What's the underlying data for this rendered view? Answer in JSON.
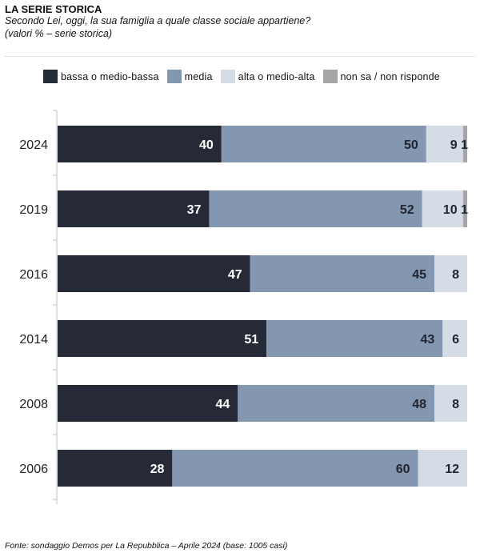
{
  "header": {
    "title": "LA SERIE STORICA",
    "subtitle": "Secondo Lei, oggi, la sua famiglia a quale classe sociale appartiene?",
    "note": "(valori % – serie storica)"
  },
  "footer": {
    "source": "Fonte: sondaggio Demos per La Repubblica – Aprile 2024 (base: 1005 casi)"
  },
  "colors": {
    "bassa": "#262a37",
    "media": "#8497b0",
    "alta": "#d6dce5",
    "nonsa": "#a6a6a6"
  },
  "chart_data": {
    "type": "bar",
    "orientation": "horizontal",
    "stacked": true,
    "categories": [
      "2024",
      "2019",
      "2016",
      "2014",
      "2008",
      "2006"
    ],
    "series": [
      {
        "name": "bassa o medio-bassa",
        "values": [
          40,
          37,
          47,
          51,
          44,
          28
        ]
      },
      {
        "name": "media",
        "values": [
          50,
          52,
          45,
          43,
          48,
          60
        ]
      },
      {
        "name": "alta o medio-alta",
        "values": [
          9,
          10,
          8,
          6,
          8,
          12
        ]
      },
      {
        "name": "non sa / non risponde",
        "values": [
          1,
          1,
          0,
          0,
          0,
          0
        ]
      }
    ],
    "xlim": [
      0,
      100
    ],
    "legend_position": "top",
    "grid": false
  }
}
